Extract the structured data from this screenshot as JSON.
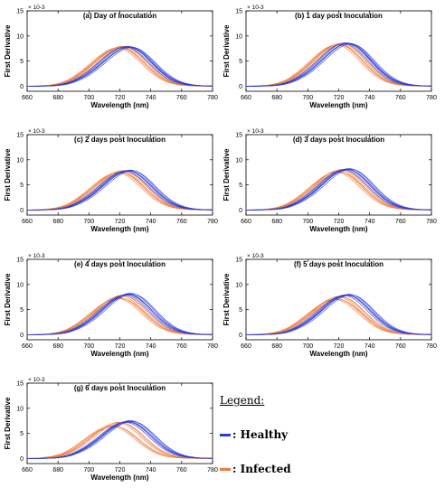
{
  "legend": {
    "title": "Legend:",
    "items": [
      {
        "label": ": Healthy",
        "color": "#2a3bd6"
      },
      {
        "label": ": Infected",
        "color": "#f07a3a"
      }
    ]
  },
  "chart_data": [
    {
      "type": "line",
      "title": "(a) Day of Inoculation",
      "xlabel": "Wavelength (nm)",
      "ylabel": "First Derivative",
      "y_multiplier": "× 10-3",
      "xlim": [
        660,
        780
      ],
      "ylim": [
        -1,
        15
      ],
      "xticks": [
        660,
        680,
        700,
        720,
        740,
        760,
        780
      ],
      "yticks": [
        0,
        5,
        10,
        15
      ],
      "series": [
        {
          "group": "healthy",
          "color": "#2a3bd6",
          "peak_x": 727,
          "peak_y": 7.5
        },
        {
          "group": "healthy",
          "color": "#2a3bd6",
          "peak_x": 725,
          "peak_y": 7.6
        },
        {
          "group": "infected",
          "color": "#f07a3a",
          "peak_x": 722,
          "peak_y": 7.6
        },
        {
          "group": "infected",
          "color": "#f07a3a",
          "peak_x": 720,
          "peak_y": 7.4
        }
      ]
    },
    {
      "type": "line",
      "title": "(b) 1 day post Inoculation",
      "xlabel": "Wavelength (nm)",
      "ylabel": "First Derivative",
      "y_multiplier": "× 10-3",
      "xlim": [
        660,
        780
      ],
      "ylim": [
        -1,
        15
      ],
      "xticks": [
        660,
        680,
        700,
        720,
        740,
        760,
        780
      ],
      "yticks": [
        0,
        5,
        10,
        15
      ],
      "series": [
        {
          "group": "healthy",
          "color": "#2a3bd6",
          "peak_x": 727,
          "peak_y": 8.2
        },
        {
          "group": "healthy",
          "color": "#2a3bd6",
          "peak_x": 725,
          "peak_y": 8.3
        },
        {
          "group": "infected",
          "color": "#f07a3a",
          "peak_x": 722,
          "peak_y": 8.2
        },
        {
          "group": "infected",
          "color": "#f07a3a",
          "peak_x": 720,
          "peak_y": 8.0
        }
      ]
    },
    {
      "type": "line",
      "title": "(c) 2 days post Inoculation",
      "xlabel": "Wavelength (nm)",
      "ylabel": "First Derivative",
      "y_multiplier": "× 10-3",
      "xlim": [
        660,
        780
      ],
      "ylim": [
        -1,
        15
      ],
      "xticks": [
        660,
        680,
        700,
        720,
        740,
        760,
        780
      ],
      "yticks": [
        0,
        5,
        10,
        15
      ],
      "series": [
        {
          "group": "healthy",
          "color": "#2a3bd6",
          "peak_x": 727,
          "peak_y": 7.6
        },
        {
          "group": "healthy",
          "color": "#2a3bd6",
          "peak_x": 725,
          "peak_y": 7.5
        },
        {
          "group": "infected",
          "color": "#f07a3a",
          "peak_x": 722,
          "peak_y": 7.5
        },
        {
          "group": "infected",
          "color": "#f07a3a",
          "peak_x": 720,
          "peak_y": 7.2
        }
      ]
    },
    {
      "type": "line",
      "title": "(d) 3 days post Inoculation",
      "xlabel": "Wavelength (nm)",
      "ylabel": "First Derivative",
      "y_multiplier": "× 10-3",
      "xlim": [
        660,
        780
      ],
      "ylim": [
        -1,
        15
      ],
      "xticks": [
        660,
        680,
        700,
        720,
        740,
        760,
        780
      ],
      "yticks": [
        0,
        5,
        10,
        15
      ],
      "series": [
        {
          "group": "healthy",
          "color": "#2a3bd6",
          "peak_x": 727,
          "peak_y": 7.9
        },
        {
          "group": "healthy",
          "color": "#2a3bd6",
          "peak_x": 725,
          "peak_y": 7.8
        },
        {
          "group": "infected",
          "color": "#f07a3a",
          "peak_x": 722,
          "peak_y": 7.7
        },
        {
          "group": "infected",
          "color": "#f07a3a",
          "peak_x": 720,
          "peak_y": 7.3
        }
      ]
    },
    {
      "type": "line",
      "title": "(e) 4 days post Inoculation",
      "xlabel": "Wavelength (nm)",
      "ylabel": "First Derivative",
      "y_multiplier": "× 10-3",
      "xlim": [
        660,
        780
      ],
      "ylim": [
        -1,
        15
      ],
      "xticks": [
        660,
        680,
        700,
        720,
        740,
        760,
        780
      ],
      "yticks": [
        0,
        5,
        10,
        15
      ],
      "series": [
        {
          "group": "healthy",
          "color": "#2a3bd6",
          "peak_x": 727,
          "peak_y": 7.9
        },
        {
          "group": "healthy",
          "color": "#2a3bd6",
          "peak_x": 725,
          "peak_y": 7.7
        },
        {
          "group": "infected",
          "color": "#f07a3a",
          "peak_x": 722,
          "peak_y": 7.5
        },
        {
          "group": "infected",
          "color": "#f07a3a",
          "peak_x": 720,
          "peak_y": 7.0
        }
      ]
    },
    {
      "type": "line",
      "title": "(f) 5 days post Inoculation",
      "xlabel": "Wavelength (nm)",
      "ylabel": "First Derivative",
      "y_multiplier": "× 10-3",
      "xlim": [
        660,
        780
      ],
      "ylim": [
        -1,
        15
      ],
      "xticks": [
        660,
        680,
        700,
        720,
        740,
        760,
        780
      ],
      "yticks": [
        0,
        5,
        10,
        15
      ],
      "series": [
        {
          "group": "healthy",
          "color": "#2a3bd6",
          "peak_x": 727,
          "peak_y": 7.7
        },
        {
          "group": "healthy",
          "color": "#2a3bd6",
          "peak_x": 725,
          "peak_y": 7.6
        },
        {
          "group": "infected",
          "color": "#f07a3a",
          "peak_x": 721,
          "peak_y": 7.3
        },
        {
          "group": "infected",
          "color": "#f07a3a",
          "peak_x": 719,
          "peak_y": 6.8
        }
      ]
    },
    {
      "type": "line",
      "title": "(g) 6 days post Inoculation",
      "xlabel": "Wavelength (nm)",
      "ylabel": "First Derivative",
      "y_multiplier": "× 10-3",
      "xlim": [
        660,
        780
      ],
      "ylim": [
        -1,
        15
      ],
      "xticks": [
        660,
        680,
        700,
        720,
        740,
        760,
        780
      ],
      "yticks": [
        0,
        5,
        10,
        15
      ],
      "series": [
        {
          "group": "healthy",
          "color": "#2a3bd6",
          "peak_x": 727,
          "peak_y": 7.2
        },
        {
          "group": "healthy",
          "color": "#2a3bd6",
          "peak_x": 725,
          "peak_y": 7.0
        },
        {
          "group": "infected",
          "color": "#f07a3a",
          "peak_x": 720,
          "peak_y": 6.9
        },
        {
          "group": "infected",
          "color": "#f07a3a",
          "peak_x": 716,
          "peak_y": 6.2
        }
      ]
    }
  ]
}
